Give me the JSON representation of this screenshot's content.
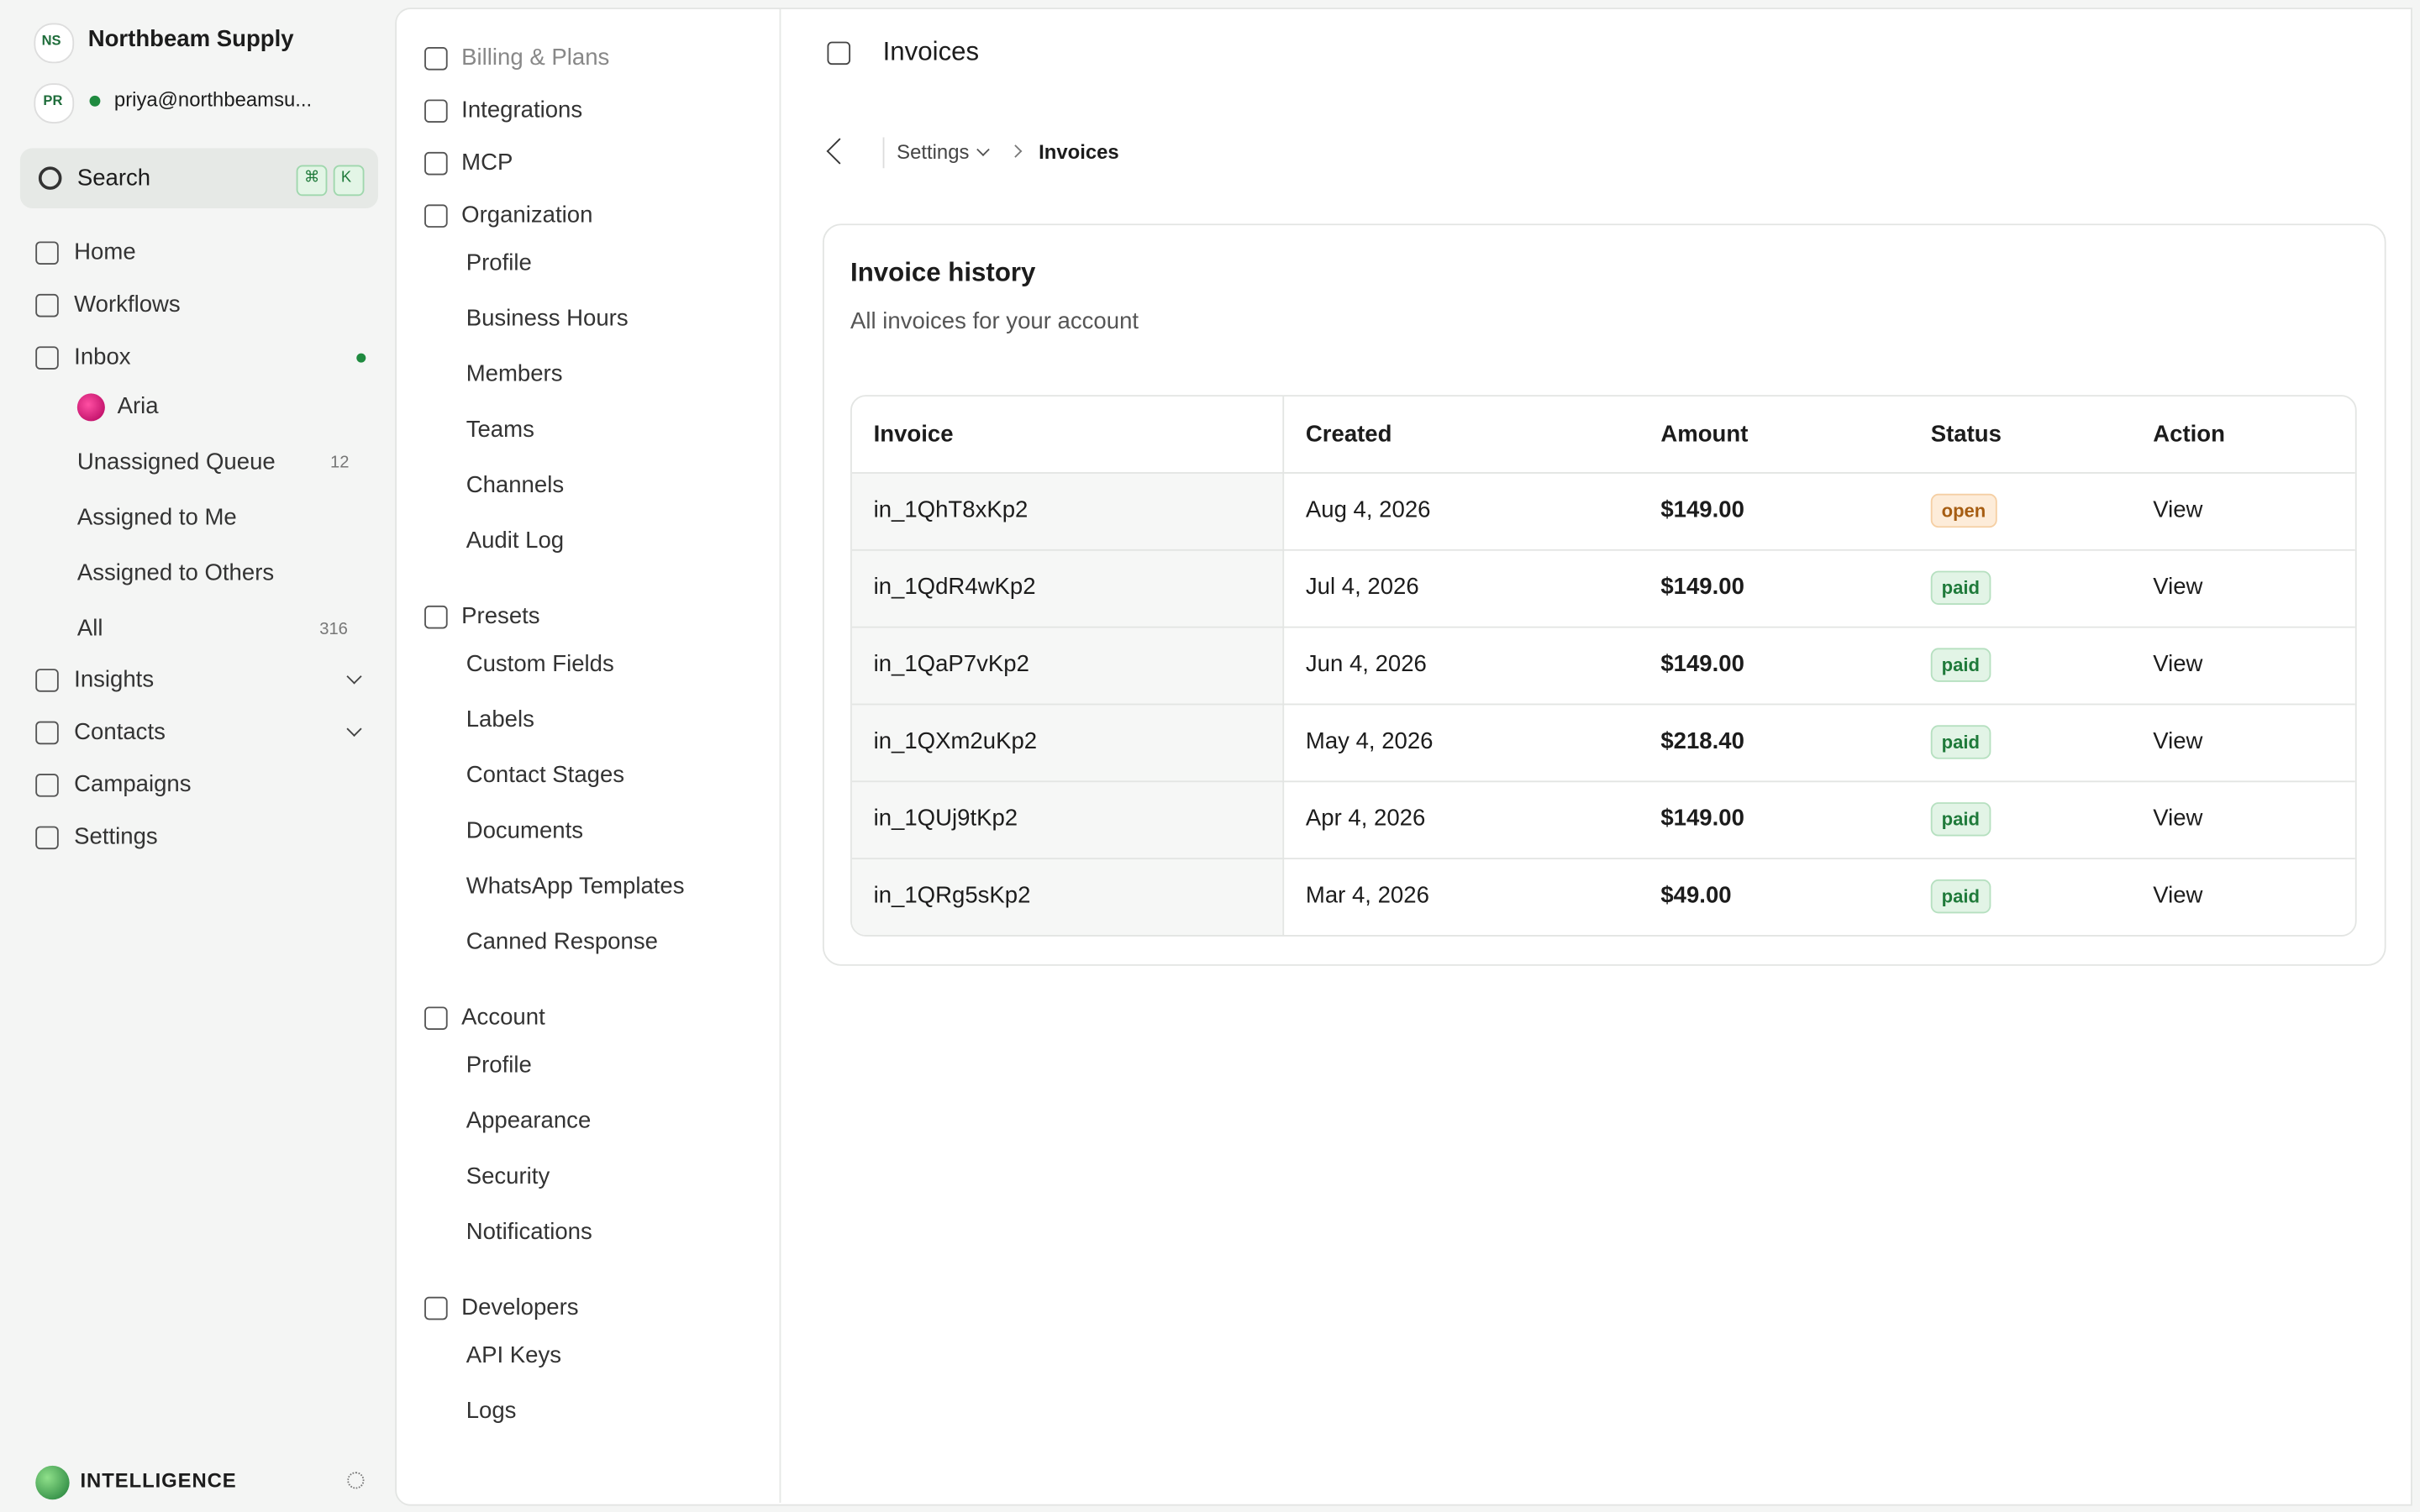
{
  "sidebar": {
    "workspace": {
      "initials": "NS",
      "name": "Northbeam Supply"
    },
    "user": {
      "initials": "PR",
      "email": "priya@northbeamsu..."
    },
    "search": {
      "label": "Search",
      "keys": [
        "⌘",
        "K"
      ]
    },
    "nav": [
      {
        "label": "Home"
      },
      {
        "label": "Workflows"
      },
      {
        "label": "Inbox",
        "unread": true,
        "children": [
          {
            "label": "Aria"
          },
          {
            "label": "Unassigned Queue",
            "count": 12
          },
          {
            "label": "Assigned to Me"
          },
          {
            "label": "Assigned to Others"
          },
          {
            "label": "All",
            "count": 316
          }
        ]
      },
      {
        "label": "Insights",
        "expandable": true
      },
      {
        "label": "Contacts",
        "expandable": true
      },
      {
        "label": "Campaigns"
      },
      {
        "label": "Settings"
      }
    ],
    "brand": "INTELLIGENCE"
  },
  "settings_nav": [
    {
      "label": "Billing & Plans",
      "faded": true
    },
    {
      "label": "Integrations"
    },
    {
      "label": "MCP"
    },
    {
      "label": "Organization",
      "items": [
        "Profile",
        "Business Hours",
        "Members",
        "Teams",
        "Channels",
        "Audit Log"
      ]
    },
    {
      "label": "Presets",
      "items": [
        "Custom Fields",
        "Labels",
        "Contact Stages",
        "Documents",
        "WhatsApp Templates",
        "Canned Response"
      ]
    },
    {
      "label": "Account",
      "items": [
        "Profile",
        "Appearance",
        "Security",
        "Notifications"
      ]
    },
    {
      "label": "Developers",
      "items": [
        "API Keys",
        "Logs"
      ]
    }
  ],
  "page": {
    "title": "Invoices",
    "breadcrumb": [
      "Settings",
      "Invoices"
    ],
    "card": {
      "title": "Invoice history",
      "subtitle": "All invoices for your account",
      "table": {
        "columns": [
          "Invoice",
          "Created",
          "Amount",
          "Status",
          "Action"
        ],
        "rows": [
          [
            "in_1QhT8xKp2",
            "Aug 4, 2026",
            "$149.00",
            "open",
            "View"
          ],
          [
            "in_1QdR4wKp2",
            "Jul 4, 2026",
            "$149.00",
            "paid",
            "View"
          ],
          [
            "in_1QaP7vKp2",
            "Jun 4, 2026",
            "$149.00",
            "paid",
            "View"
          ],
          [
            "in_1QXm2uKp2",
            "May 4, 2026",
            "$218.40",
            "paid",
            "View"
          ],
          [
            "in_1QUj9tKp2",
            "Apr 4, 2026",
            "$149.00",
            "paid",
            "View"
          ],
          [
            "in_1QRg5sKp2",
            "Mar 4, 2026",
            "$49.00",
            "paid",
            "View"
          ]
        ]
      }
    }
  }
}
